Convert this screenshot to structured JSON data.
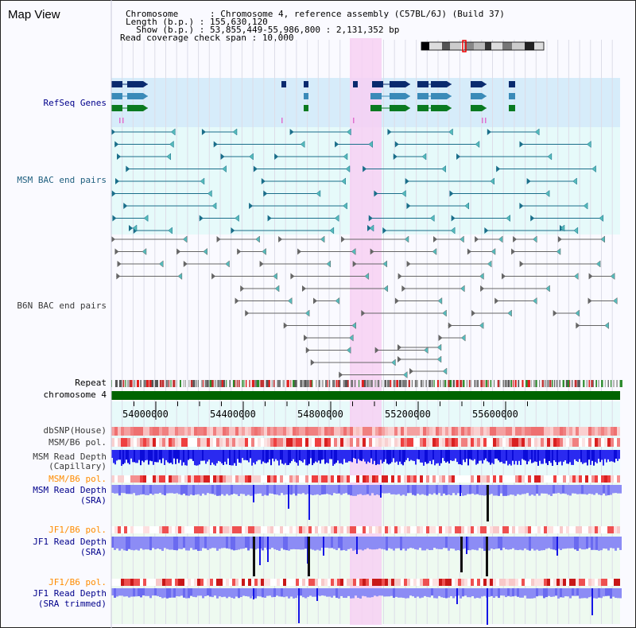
{
  "header": {
    "title": "Map View",
    "chromosome_line": "Chromosome      : Chromosome 4, reference assembly (C57BL/6J) (Build 37)",
    "length_line": "Length (b.p.) : 155,630,120",
    "show_line": "  Show (b.p.) : 53,855,449-55,986,800 : 2,131,352 bp",
    "coverage_line": "Read coverage check span : 10,000"
  },
  "tracks": {
    "refseq": "RefSeq Genes",
    "msm_bac": "MSM BAC end pairs",
    "b6n_bac": "B6N BAC end pairs",
    "repeat": "Repeat",
    "chromosome": "chromosome 4",
    "dbsnp": "dbSNP(House)",
    "msm_b6_pol_1": "MSM/B6 pol.",
    "msm_read_depth_cap_1": "MSM Read Depth",
    "msm_read_depth_cap_2": "(Capillary)",
    "msm_b6_pol_2": "MSM/B6 pol.",
    "msm_read_depth_sra_1": "MSM Read Depth",
    "msm_read_depth_sra_2": "(SRA)",
    "jf1_b6_pol_1": "JF1/B6 pol.",
    "jf1_read_depth_sra_1": "JF1 Read Depth",
    "jf1_read_depth_sra_2": "(SRA)",
    "jf1_b6_pol_2": "JF1/B6 pol.",
    "jf1_read_depth_trim_1": "JF1 Read Depth",
    "jf1_read_depth_trim_2": "(SRA trimmed)"
  },
  "axis": {
    "ticks": [
      {
        "label": "54000000",
        "value": 54000000
      },
      {
        "label": "54400000",
        "value": 54400000
      },
      {
        "label": "54800000",
        "value": 54800000
      },
      {
        "label": "55200000",
        "value": 55200000
      },
      {
        "label": "55600000",
        "value": 55600000
      }
    ]
  },
  "colors": {
    "refseq_bg": "#d6ecfa",
    "msm_bg": "#e6fafa",
    "highlight": "#f7d0f3",
    "chromosome": "#006400",
    "depth_blue": "#1515e6",
    "depth_light": "#8c8cf5",
    "pol_red": "#e83030",
    "pol_light": "#f7c8c8",
    "bac_teal": "#1a6e8a",
    "bac_gray": "#666666"
  }
}
